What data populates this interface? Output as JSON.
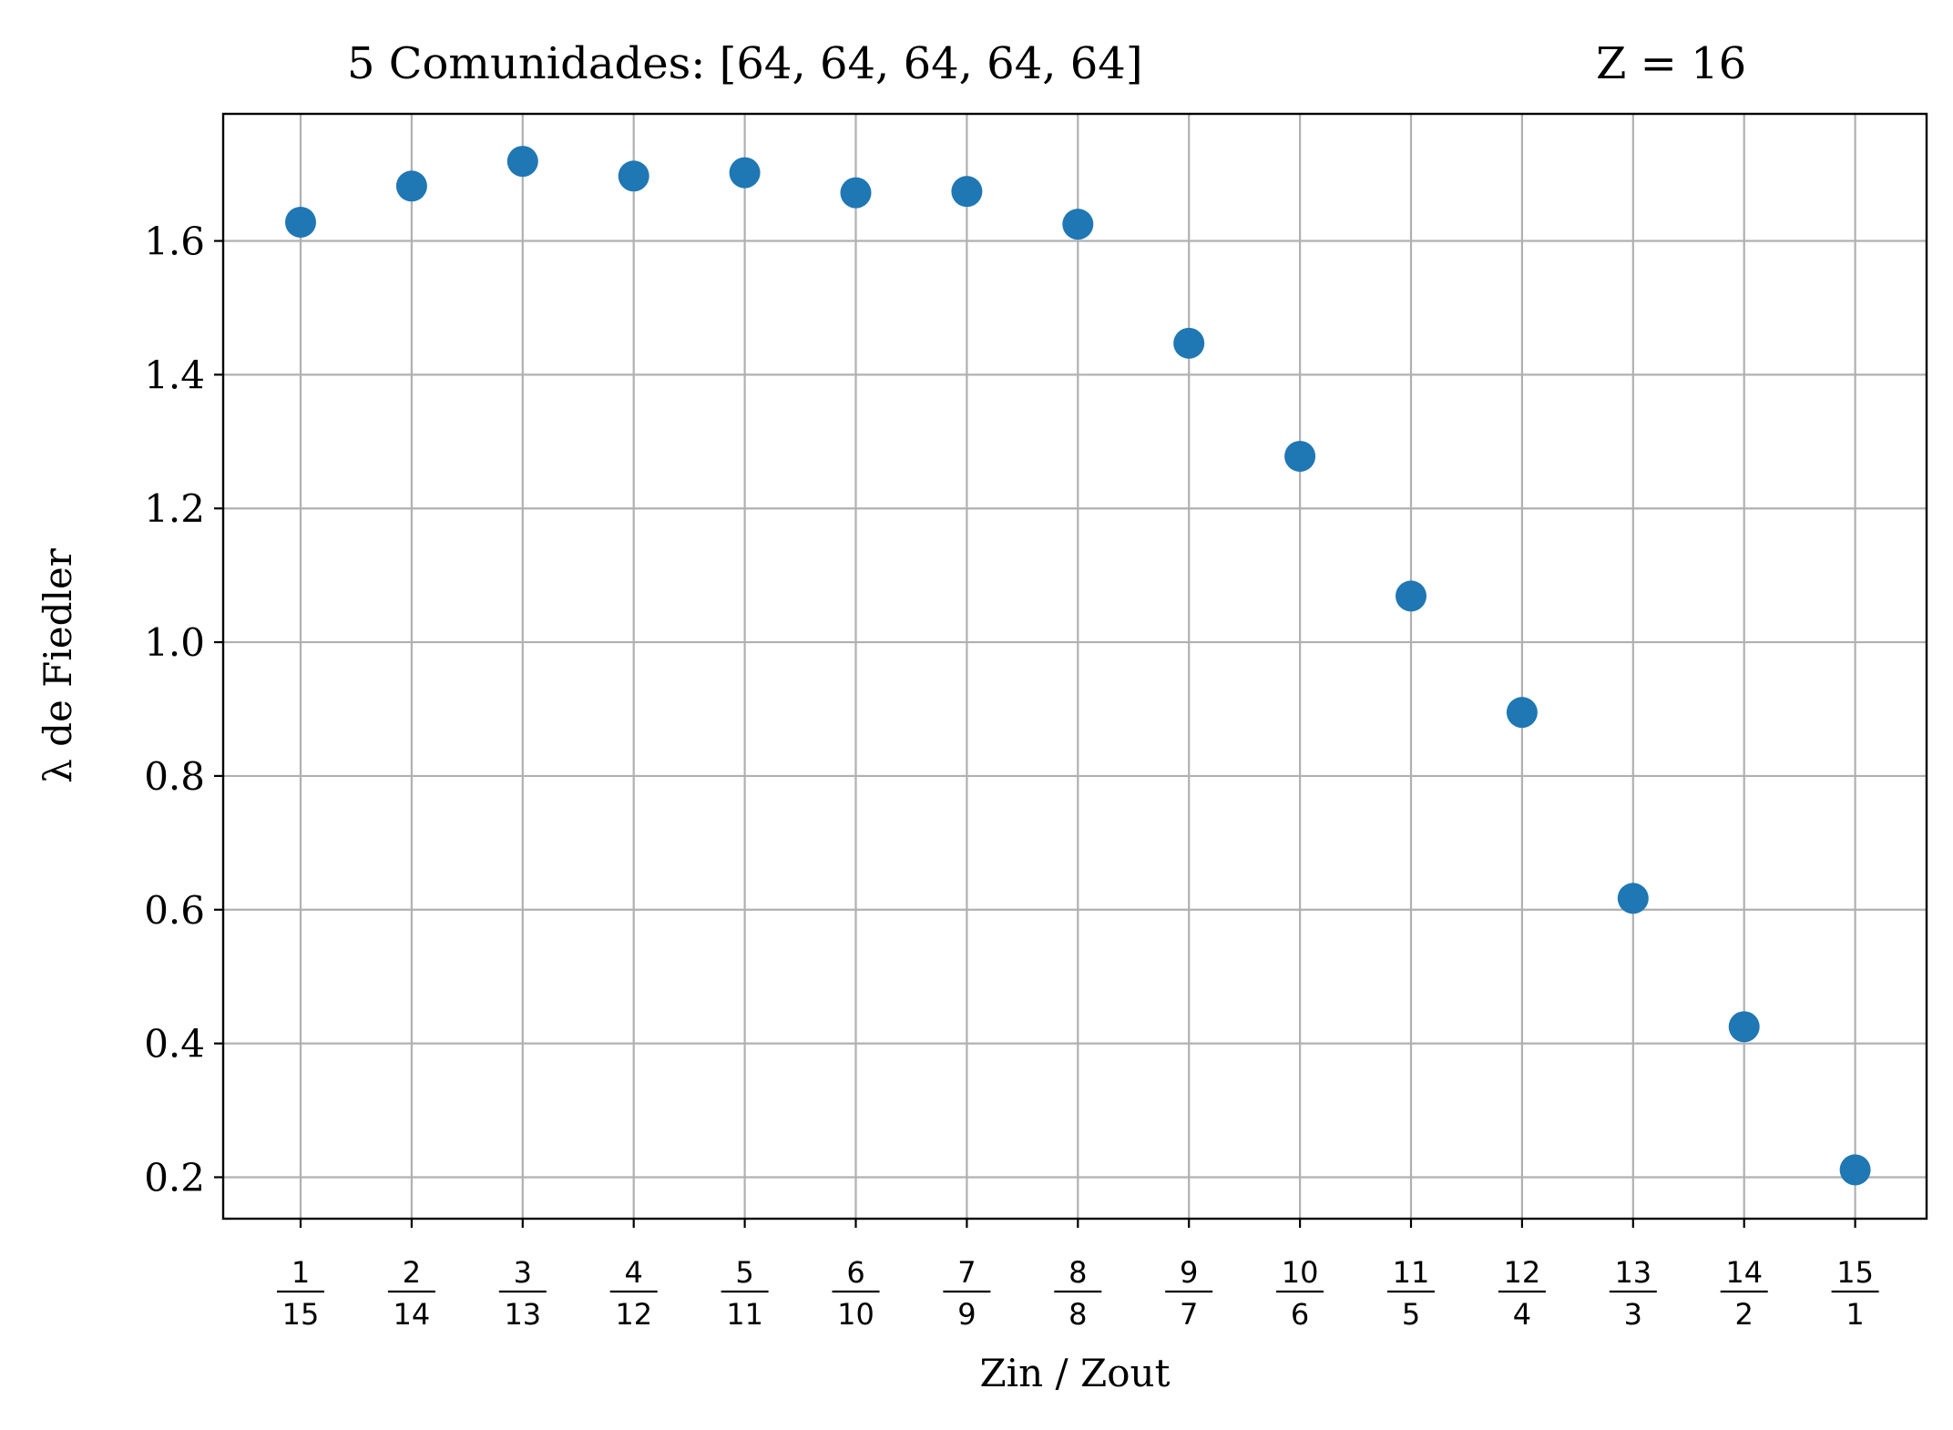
{
  "chart_data": {
    "type": "scatter",
    "title_left": "5 Comunidades: [64, 64, 64, 64, 64]",
    "title_right": "Z = 16",
    "xlabel": "Zin / Zout",
    "ylabel": "λ de Fiedler",
    "x_ticks": [
      {
        "num": "1",
        "den": "15"
      },
      {
        "num": "2",
        "den": "14"
      },
      {
        "num": "3",
        "den": "13"
      },
      {
        "num": "4",
        "den": "12"
      },
      {
        "num": "5",
        "den": "11"
      },
      {
        "num": "6",
        "den": "10"
      },
      {
        "num": "7",
        "den": "9"
      },
      {
        "num": "8",
        "den": "8"
      },
      {
        "num": "9",
        "den": "7"
      },
      {
        "num": "10",
        "den": "6"
      },
      {
        "num": "11",
        "den": "5"
      },
      {
        "num": "12",
        "den": "4"
      },
      {
        "num": "13",
        "den": "3"
      },
      {
        "num": "14",
        "den": "2"
      },
      {
        "num": "15",
        "den": "1"
      }
    ],
    "y_ticks": [
      "0.2",
      "0.4",
      "0.6",
      "0.8",
      "1.0",
      "1.2",
      "1.4",
      "1.6"
    ],
    "ylim": [
      0.138,
      1.79
    ],
    "values": [
      1.628,
      1.682,
      1.719,
      1.697,
      1.702,
      1.672,
      1.674,
      1.625,
      1.447,
      1.278,
      1.069,
      0.895,
      0.617,
      0.425,
      0.211
    ],
    "grid": true,
    "marker_color": "#1f77b4"
  }
}
